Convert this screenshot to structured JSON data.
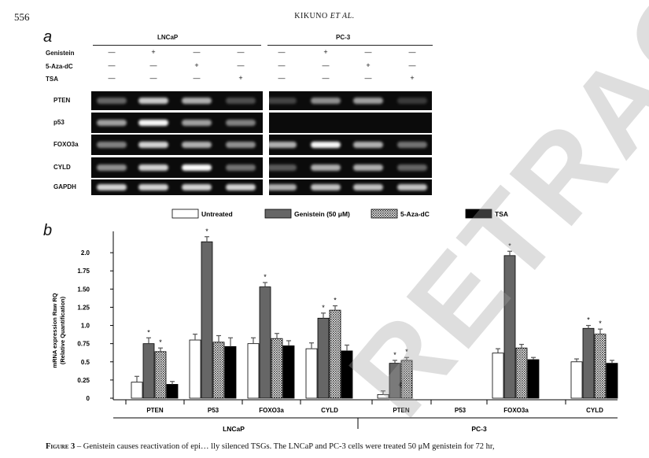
{
  "header": {
    "page_number": "556",
    "running_head_main": "KIKUNO ",
    "running_head_italic": "ET AL."
  },
  "panel_a": {
    "letter": "a",
    "cell_lines": [
      "LNCaP",
      "PC-3"
    ],
    "treatments": [
      {
        "label": "Genistein",
        "signs": [
          "—",
          "+",
          "—",
          "—",
          "—",
          "+",
          "—",
          "—"
        ]
      },
      {
        "label": "5-Aza-dC",
        "signs": [
          "—",
          "—",
          "+",
          "—",
          "—",
          "—",
          "+",
          "—"
        ]
      },
      {
        "label": "TSA",
        "signs": [
          "—",
          "—",
          "—",
          "+",
          "—",
          "—",
          "—",
          "+"
        ]
      }
    ],
    "genes": [
      "PTEN",
      "p53",
      "FOXO3a",
      "CYLD",
      "GAPDH"
    ],
    "band_intensity": [
      [
        0.35,
        0.7,
        0.6,
        0.25,
        0.2,
        0.5,
        0.55,
        0.15
      ],
      [
        0.55,
        0.95,
        0.55,
        0.45,
        0.0,
        0.0,
        0.0,
        0.0
      ],
      [
        0.45,
        0.75,
        0.6,
        0.5,
        0.6,
        0.95,
        0.6,
        0.4
      ],
      [
        0.5,
        0.75,
        0.98,
        0.4,
        0.3,
        0.6,
        0.6,
        0.35
      ],
      [
        0.75,
        0.75,
        0.75,
        0.75,
        0.6,
        0.65,
        0.65,
        0.65
      ]
    ]
  },
  "panel_b": {
    "letter": "b"
  },
  "chart_data": {
    "type": "bar",
    "ylabel_line1": "mRNA expression Raw RQ",
    "ylabel_line2": "(Relative Quantification)",
    "ylim": [
      0,
      2.25
    ],
    "yticks": [
      "0",
      "0.25",
      "0.5",
      "0.75",
      "1.0",
      "1.25",
      "1.50",
      "1.75",
      "2.0"
    ],
    "groups": [
      "LNCaP",
      "PC-3"
    ],
    "categories": [
      "PTEN",
      "P53",
      "FOXO3a",
      "CYLD",
      "PTEN",
      "P53",
      "FOXO3a",
      "CYLD"
    ],
    "legend_position": "top",
    "series": [
      {
        "name": "Untreated",
        "color": "#ffffff",
        "pattern": "none",
        "values": [
          0.22,
          0.8,
          0.75,
          0.68,
          0.05,
          null,
          0.62,
          0.5
        ],
        "errors": [
          0.08,
          0.08,
          0.08,
          0.08,
          0.05,
          null,
          0.06,
          0.04
        ],
        "stars": [
          false,
          false,
          false,
          false,
          false,
          false,
          false,
          false
        ]
      },
      {
        "name": "Genistein (50 μM)",
        "color": "#666666",
        "pattern": "none",
        "values": [
          0.75,
          2.15,
          1.53,
          1.1,
          0.48,
          null,
          1.96,
          0.96
        ],
        "errors": [
          0.08,
          0.07,
          0.06,
          0.07,
          0.04,
          null,
          0.06,
          0.04
        ],
        "stars": [
          true,
          true,
          true,
          true,
          true,
          false,
          true,
          true
        ]
      },
      {
        "name": "5-Aza-dC",
        "color": "#888888",
        "pattern": "dots",
        "values": [
          0.64,
          0.77,
          0.82,
          1.21,
          0.52,
          null,
          0.69,
          0.88
        ],
        "errors": [
          0.05,
          0.09,
          0.07,
          0.06,
          0.04,
          null,
          0.05,
          0.07
        ],
        "stars": [
          true,
          false,
          false,
          true,
          true,
          false,
          false,
          true
        ]
      },
      {
        "name": "TSA",
        "color": "#000000",
        "pattern": "none",
        "values": [
          0.19,
          0.71,
          0.72,
          0.65,
          null,
          null,
          0.53,
          0.48
        ],
        "errors": [
          0.04,
          0.12,
          0.07,
          0.08,
          null,
          null,
          0.03,
          0.04
        ],
        "stars": [
          false,
          false,
          false,
          false,
          false,
          false,
          false,
          false
        ]
      }
    ]
  },
  "caption": {
    "figure_label": "Figure 3",
    "text": " – Genistein causes reactivation of epi… lly silenced TSGs. The LNCaP and PC-3 cells were treated 50 μM genistein for 72 hr,"
  },
  "watermark": {
    "text": "RETRACTED"
  }
}
